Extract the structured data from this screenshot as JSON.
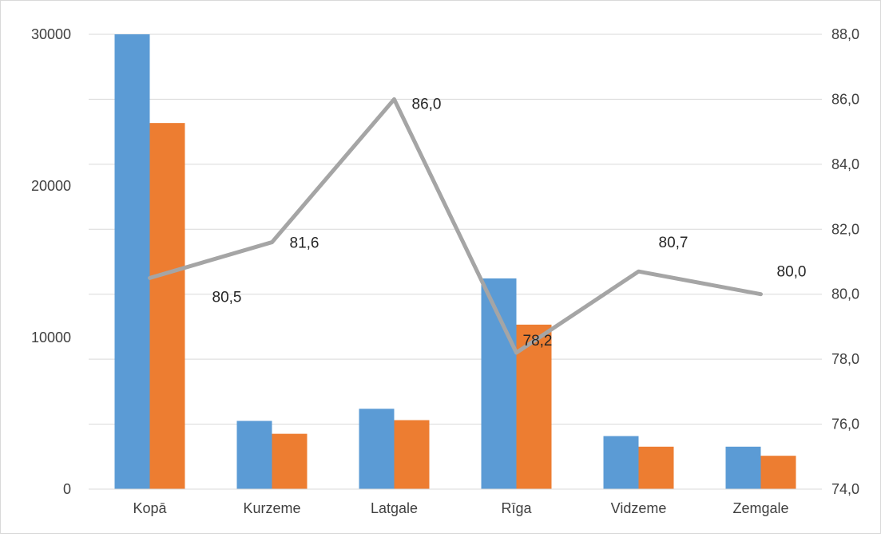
{
  "chart_data": {
    "type": "bar",
    "combo": true,
    "categories": [
      "Kopā",
      "Kurzeme",
      "Latgale",
      "Rīga",
      "Vidzeme",
      "Zemgale"
    ],
    "series": [
      {
        "type": "bar",
        "axis": "left",
        "color": "#5b9bd5",
        "values": [
          30000,
          4500,
          5300,
          13900,
          3500,
          2800
        ]
      },
      {
        "type": "bar",
        "axis": "left",
        "color": "#ed7d31",
        "values": [
          24150,
          3650,
          4550,
          10850,
          2800,
          2200
        ]
      },
      {
        "type": "line",
        "axis": "right",
        "color": "#a5a5a5",
        "values": [
          80.5,
          81.6,
          86.0,
          78.2,
          80.7,
          80.0
        ],
        "data_labels": [
          "80,5",
          "81,6",
          "86,0",
          "78,2",
          "80,7",
          "80,0"
        ]
      }
    ],
    "y_left": {
      "ylim": [
        0,
        30000
      ],
      "ticks": [
        0,
        10000,
        20000,
        30000
      ],
      "tick_labels": [
        "0",
        "10000",
        "20000",
        "30000"
      ]
    },
    "y_right": {
      "ylim": [
        74,
        88
      ],
      "ticks": [
        74,
        76,
        78,
        80,
        82,
        84,
        86,
        88
      ],
      "tick_labels": [
        "74,0",
        "76,0",
        "78,0",
        "80,0",
        "82,0",
        "84,0",
        "86,0",
        "88,0"
      ]
    },
    "grid": true,
    "legend": "none",
    "title": "",
    "xlabel": "",
    "ylabel": ""
  }
}
